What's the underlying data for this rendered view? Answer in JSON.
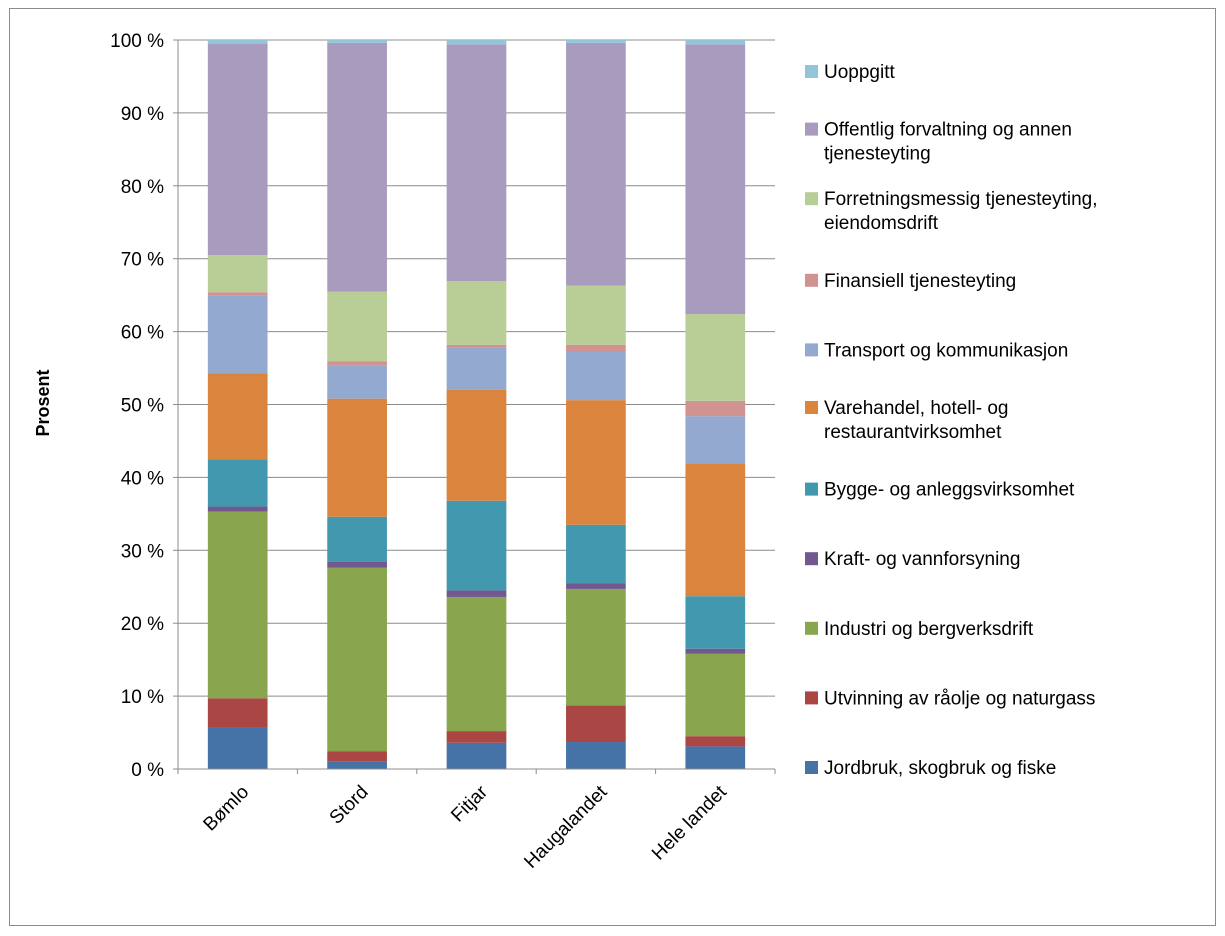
{
  "chart_data": {
    "type": "bar",
    "stacked": true,
    "percent_stacked": true,
    "title": "",
    "xlabel": "",
    "ylabel": "Prosent",
    "ylim": [
      0,
      100
    ],
    "y_ticks": [
      "0 %",
      "10 %",
      "20 %",
      "30 %",
      "40 %",
      "50 %",
      "60 %",
      "70 %",
      "80 %",
      "90 %",
      "100 %"
    ],
    "grid": true,
    "legend_position": "right",
    "categories": [
      "Bømlo",
      "Stord",
      "Fitjar",
      "Haugalandet",
      "Hele landet"
    ],
    "series": [
      {
        "name": "Jordbruk, skogbruk og fiske",
        "color": "#4572a7",
        "values": [
          5.7,
          1.0,
          3.6,
          3.7,
          3.1
        ]
      },
      {
        "name": "Utvinning av råolje og naturgass",
        "color": "#aa4643",
        "values": [
          4.0,
          1.4,
          1.6,
          5.0,
          1.4
        ]
      },
      {
        "name": "Industri og bergverksdrift",
        "color": "#89a54e",
        "values": [
          25.6,
          25.2,
          18.4,
          16.0,
          11.3
        ]
      },
      {
        "name": "Kraft- og vannforsyning",
        "color": "#71588f",
        "values": [
          0.7,
          0.8,
          0.9,
          0.8,
          0.7
        ]
      },
      {
        "name": "Bygge- og anleggsvirksomhet",
        "color": "#4198af",
        "values": [
          6.5,
          6.2,
          12.3,
          8.0,
          7.2
        ]
      },
      {
        "name": "Varehandel, hotell- og restaurantvirksomhet",
        "color": "#db843d",
        "values": [
          11.8,
          16.2,
          15.2,
          17.1,
          18.2
        ]
      },
      {
        "name": "Transport og kommunikasjon",
        "color": "#93a9cf",
        "values": [
          10.6,
          4.5,
          5.8,
          6.6,
          6.5
        ]
      },
      {
        "name": "Finansiell tjenesteyting",
        "color": "#d19392",
        "values": [
          0.5,
          0.6,
          0.4,
          1.0,
          2.1
        ]
      },
      {
        "name": "Forretningsmessig tjenesteyting, eiendomsdrift",
        "color": "#b9cd96",
        "values": [
          5.1,
          9.6,
          8.7,
          8.1,
          11.9
        ]
      },
      {
        "name": "Offentlig forvaltning og annen tjenesteyting",
        "color": "#a99bbd",
        "values": [
          29.0,
          34.1,
          32.5,
          33.3,
          37.0
        ]
      },
      {
        "name": "Uoppgitt",
        "color": "#92c5d8",
        "values": [
          0.5,
          0.4,
          0.6,
          0.4,
          0.6
        ]
      }
    ]
  }
}
